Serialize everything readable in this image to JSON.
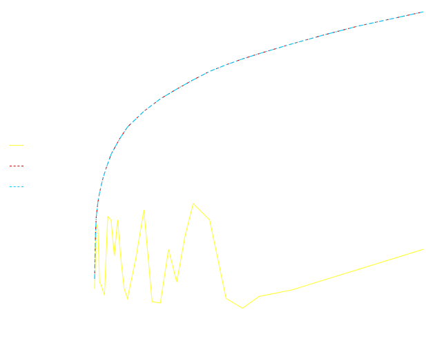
{
  "chart_data": {
    "type": "line",
    "title": "",
    "xlabel": "",
    "ylabel": "",
    "xlim": [
      0,
      20
    ],
    "ylim": [
      0,
      4.6
    ],
    "grid": false,
    "axes_visible": false,
    "legend": {
      "placement": "left",
      "labels_visible": false
    },
    "series": [
      {
        "name": "",
        "color": "#ffff33",
        "style": "solid",
        "x": [
          0.0,
          0.1,
          0.2,
          0.3,
          0.4,
          0.6,
          0.8,
          1.0,
          1.2,
          1.4,
          1.6,
          1.8,
          2.0,
          2.5,
          3.0,
          3.5,
          4.0,
          4.5,
          5.0,
          5.5,
          6.0,
          7.0,
          8.0,
          9.0,
          10.0,
          11.0,
          12.0,
          20.0
        ],
        "y": [
          0.4,
          1.4,
          1.3,
          0.5,
          0.45,
          0.3,
          1.5,
          1.45,
          0.9,
          1.45,
          0.85,
          0.4,
          0.25,
          0.85,
          1.6,
          0.2,
          0.18,
          1.0,
          0.5,
          1.2,
          1.7,
          1.45,
          0.25,
          0.1,
          0.28,
          0.33,
          0.38,
          1.0
        ]
      },
      {
        "name": "",
        "color": "#cc0000",
        "style": "dashed",
        "x": [
          0.0,
          0.05,
          0.1,
          0.2,
          0.3,
          0.5,
          0.7,
          1.0,
          1.5,
          2.0,
          3.0,
          4.0,
          5.0,
          6.0,
          7.0,
          8.0,
          9.0,
          10.0,
          12.0,
          14.0,
          16.0,
          18.0,
          20.0
        ],
        "y": [
          0.55,
          1.2,
          1.5,
          1.72,
          1.86,
          2.08,
          2.24,
          2.45,
          2.68,
          2.87,
          3.11,
          3.3,
          3.45,
          3.59,
          3.72,
          3.82,
          3.91,
          3.99,
          4.14,
          4.28,
          4.41,
          4.52,
          4.63
        ]
      },
      {
        "name": "",
        "color": "#00ccff",
        "style": "dash-dot",
        "x": [
          0.0,
          0.05,
          0.1,
          0.2,
          0.3,
          0.5,
          0.7,
          1.0,
          1.5,
          2.0,
          3.0,
          4.0,
          5.0,
          6.0,
          7.0,
          8.0,
          9.0,
          10.0,
          12.0,
          14.0,
          16.0,
          18.0,
          20.0
        ],
        "y": [
          0.55,
          1.2,
          1.5,
          1.72,
          1.86,
          2.08,
          2.24,
          2.45,
          2.68,
          2.87,
          3.11,
          3.3,
          3.45,
          3.59,
          3.72,
          3.82,
          3.91,
          3.99,
          4.14,
          4.28,
          4.41,
          4.52,
          4.63
        ]
      }
    ]
  }
}
